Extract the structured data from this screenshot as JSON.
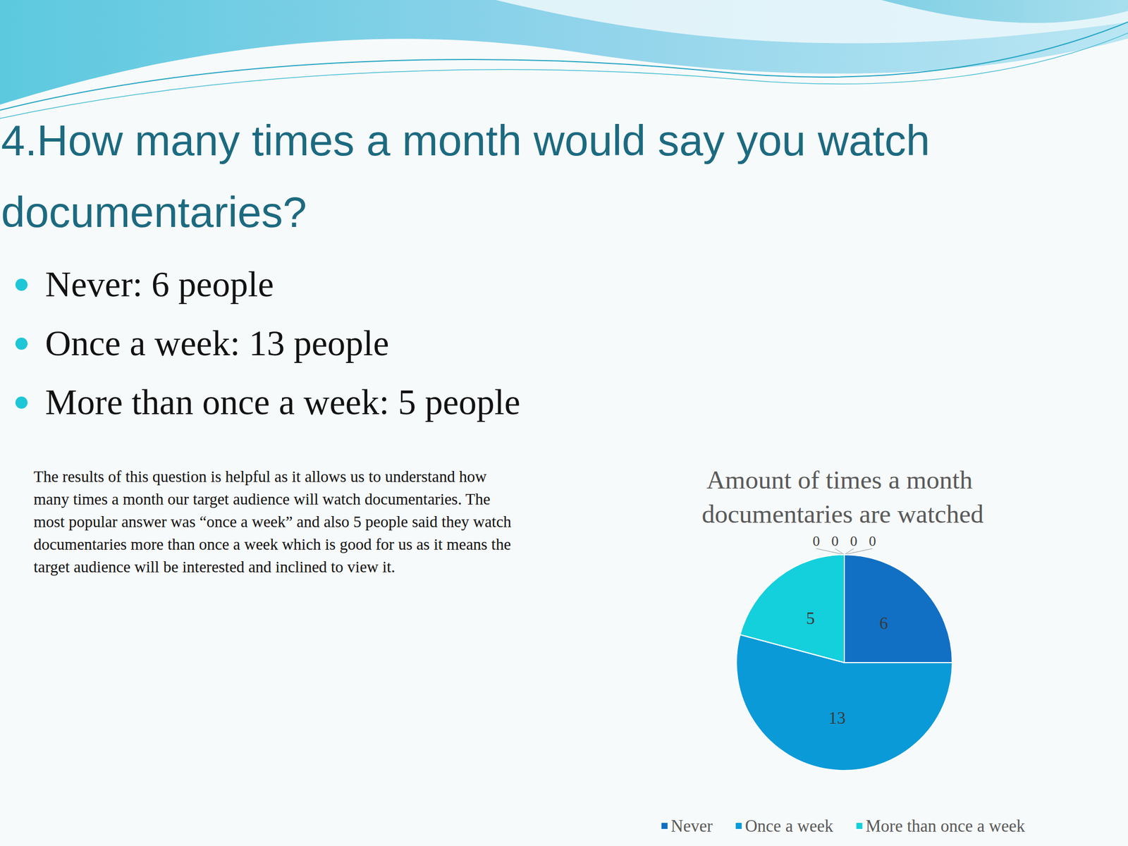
{
  "title": "4.How many times a month would say you watch documentaries?",
  "bullets": [
    "Never: 6 people",
    "Once a week: 13 people",
    "More than once a week: 5 people"
  ],
  "paragraph": "The results of this question is helpful as it allows us to understand how many times a month our target audience will watch documentaries. The most popular answer was “once a week” and also 5 people said they watch documentaries more than once a week which is good for us as it means the target audience will be interested and inclined to view it.",
  "chart_data": {
    "type": "pie",
    "title": "Amount of times a month documentaries are watched",
    "categories": [
      "Never",
      "Once a week",
      "More than once a week",
      null,
      null,
      null,
      null
    ],
    "values": [
      6,
      13,
      5,
      0,
      0,
      0,
      0
    ],
    "colors": [
      "#1170c4",
      "#0a9ad8",
      "#14cfdc",
      "#2a5ea8",
      "#0e7fb8",
      "#1ba6bd",
      "#5a93d6"
    ],
    "data_labels": true,
    "legend": "bottom"
  }
}
